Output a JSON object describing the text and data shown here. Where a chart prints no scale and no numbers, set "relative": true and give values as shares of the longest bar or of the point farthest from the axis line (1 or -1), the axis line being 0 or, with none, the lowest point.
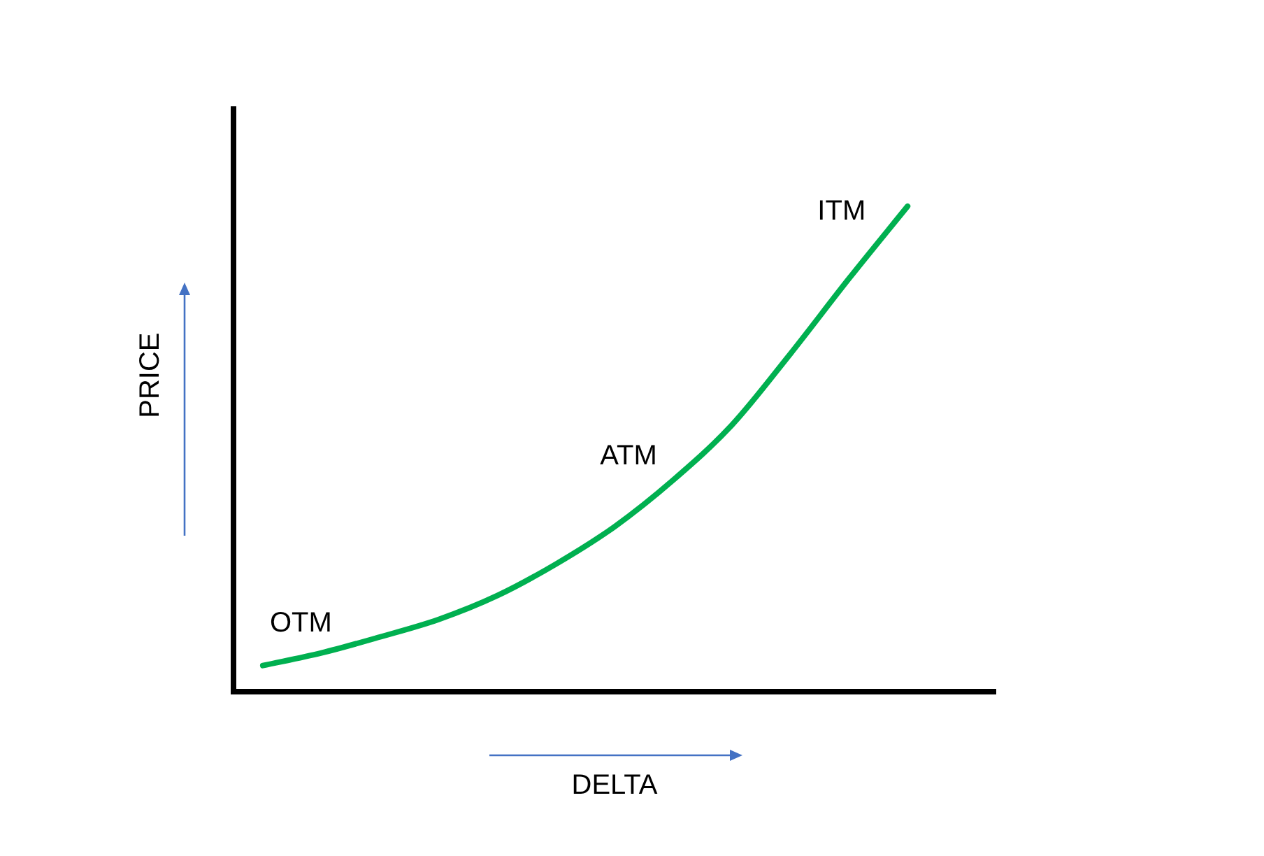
{
  "chart_data": {
    "type": "line",
    "xlabel": "DELTA",
    "ylabel": "PRICE",
    "relative": true,
    "grid": false,
    "legend": false,
    "marker": "none",
    "line_style": "solid",
    "categories": [
      null,
      null,
      null,
      null,
      null,
      null,
      null,
      null,
      null,
      null,
      null,
      null
    ],
    "series": [
      {
        "color": "#00b050",
        "values": [
          0.054,
          0.08,
          0.113,
          0.149,
          0.198,
          0.263,
          0.34,
          0.436,
          0.549,
          0.696,
          0.851,
          1
        ]
      }
    ],
    "annotations": [
      "OTM",
      "ATM",
      "ITM"
    ]
  }
}
